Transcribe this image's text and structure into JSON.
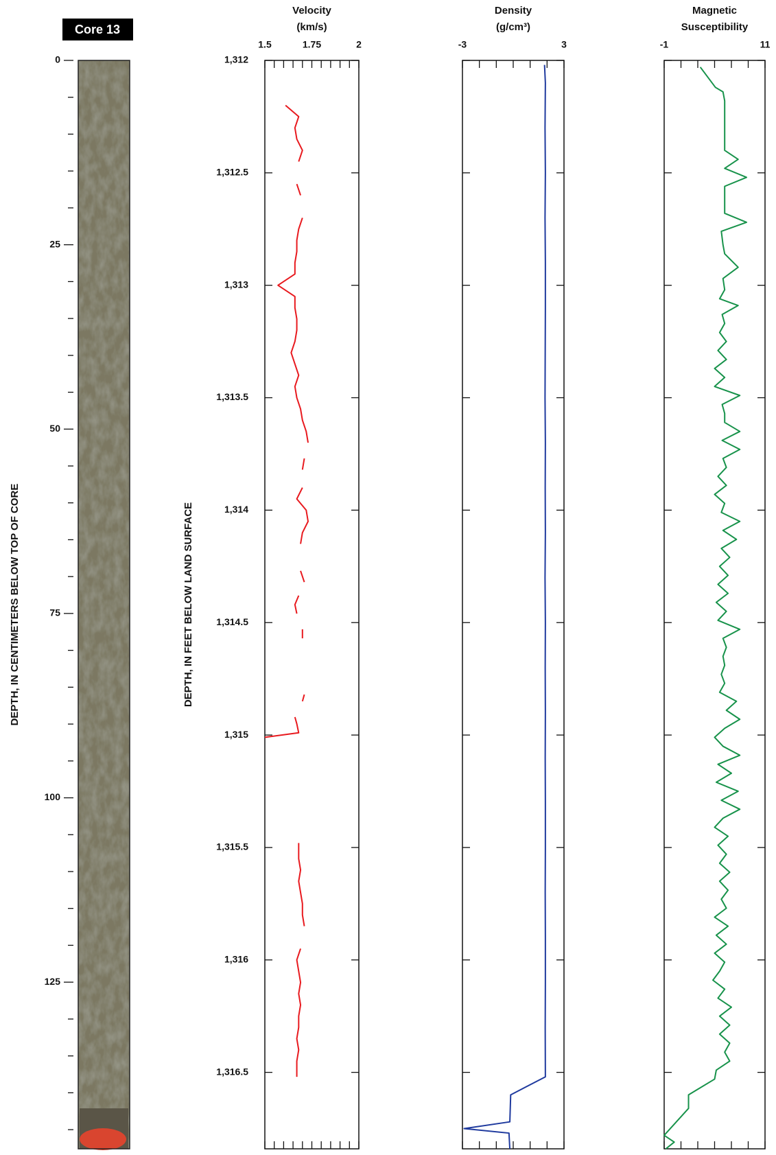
{
  "depth_axis": {
    "ylabel": "DEPTH, IN FEET BELOW LAND SURFACE",
    "yticks": [
      {
        "value": 1312,
        "label": "1,312"
      },
      {
        "value": 1312.5,
        "label": "1,312.5"
      },
      {
        "value": 1313,
        "label": "1,313"
      },
      {
        "value": 1313.5,
        "label": "1,313.5"
      },
      {
        "value": 1314,
        "label": "1,314"
      },
      {
        "value": 1314.5,
        "label": "1,314.5"
      },
      {
        "value": 1315,
        "label": "1,315"
      },
      {
        "value": 1315.5,
        "label": "1,315.5"
      },
      {
        "value": 1316,
        "label": "1,316"
      },
      {
        "value": 1316.5,
        "label": "1,316.5"
      }
    ]
  },
  "chart_data": [
    {
      "type": "core",
      "title": "Core 13",
      "ylabel": "DEPTH, IN CENTIMETERS BELOW TOP OF CORE",
      "ylim": [
        0,
        147.6
      ],
      "yticks": [
        0,
        25,
        50,
        75,
        100,
        125
      ],
      "yminorticks": [
        5,
        10,
        15,
        20,
        30,
        35,
        40,
        45,
        55,
        60,
        65,
        70,
        80,
        85,
        90,
        95,
        105,
        110,
        115,
        120,
        130,
        135,
        140,
        145
      ]
    },
    {
      "type": "line",
      "xlabel": [
        "Velocity",
        "(km/s)"
      ],
      "color": "#e8191e",
      "ytick_labels": true,
      "xlim": [
        1.5,
        2
      ],
      "xticks": [
        1.5,
        1.75,
        2
      ],
      "xminorticks": [
        1.55,
        1.6,
        1.65,
        1.7,
        1.8,
        1.85,
        1.9,
        1.95
      ],
      "ylim": [
        1312,
        1316.84
      ],
      "depth": [
        1312.2,
        1312.25,
        1312.3,
        1312.35,
        1312.4,
        1312.45,
        1312.5,
        1312.55,
        1312.6,
        1312.65,
        1312.7,
        1312.75,
        1312.8,
        1312.85,
        1312.9,
        1312.95,
        1313,
        1313.05,
        1313.1,
        1313.15,
        1313.2,
        1313.25,
        1313.3,
        1313.35,
        1313.4,
        1313.45,
        1313.5,
        1313.55,
        1313.6,
        1313.65,
        1313.7,
        1313.74,
        1313.77,
        1313.82,
        1313.86,
        1313.9,
        1313.95,
        1314,
        1314.05,
        1314.1,
        1314.15,
        1314.2,
        1314.27,
        1314.32,
        1314.36,
        1314.38,
        1314.42,
        1314.46,
        1314.48,
        1314.53,
        1314.57,
        1314.7,
        1314.82,
        1314.85,
        1314.87,
        1314.92,
        1314.95,
        1314.99,
        1315.01,
        1315.1,
        1315.48,
        1315.55,
        1315.6,
        1315.65,
        1315.7,
        1315.75,
        1315.8,
        1315.85,
        1315.9,
        1315.95,
        1316,
        1316.05,
        1316.1,
        1316.15,
        1316.2,
        1316.25,
        1316.3,
        1316.35,
        1316.4,
        1316.45,
        1316.5,
        1316.52
      ],
      "values": [
        1.61,
        1.68,
        1.66,
        1.67,
        1.7,
        1.68,
        null,
        1.67,
        1.69,
        null,
        1.7,
        1.68,
        1.67,
        1.67,
        1.66,
        1.66,
        1.57,
        1.66,
        1.66,
        1.67,
        1.67,
        1.66,
        1.64,
        1.66,
        1.68,
        1.66,
        1.67,
        1.69,
        1.7,
        1.72,
        1.73,
        null,
        1.71,
        1.7,
        null,
        1.7,
        1.67,
        1.72,
        1.73,
        1.7,
        1.69,
        null,
        1.69,
        1.71,
        null,
        1.68,
        1.66,
        1.67,
        null,
        1.7,
        1.7,
        null,
        1.71,
        1.7,
        null,
        1.66,
        1.67,
        1.68,
        1.5,
        null,
        1.68,
        1.68,
        1.69,
        1.68,
        1.69,
        1.7,
        1.7,
        1.71,
        null,
        1.69,
        1.67,
        1.68,
        1.69,
        1.68,
        1.69,
        1.68,
        1.68,
        1.67,
        1.68,
        1.67,
        1.67,
        1.67
      ]
    },
    {
      "type": "line",
      "xlabel": [
        "Density",
        "(g/cm³)"
      ],
      "color": "#1f3a9e",
      "ytick_labels": false,
      "xlim": [
        -3,
        3
      ],
      "xticks": [
        -3,
        3
      ],
      "xminorticks": [
        -2,
        -1,
        0,
        1,
        2
      ],
      "ylim": [
        1312,
        1316.84
      ],
      "depth": [
        1312.02,
        1312.1,
        1312.3,
        1312.5,
        1312.7,
        1312.9,
        1313.1,
        1313.3,
        1313.5,
        1313.7,
        1313.9,
        1314.1,
        1314.3,
        1314.5,
        1314.7,
        1314.9,
        1315.1,
        1315.3,
        1315.5,
        1315.7,
        1315.9,
        1316.1,
        1316.3,
        1316.52,
        1316.6,
        1316.72,
        1316.75,
        1316.77,
        1316.84
      ],
      "values": [
        1.85,
        1.9,
        1.88,
        1.9,
        1.88,
        1.9,
        1.9,
        1.89,
        1.88,
        1.9,
        1.89,
        1.9,
        1.88,
        1.9,
        1.89,
        1.9,
        1.89,
        1.9,
        1.9,
        1.89,
        1.9,
        1.9,
        1.89,
        1.9,
        -0.15,
        -0.2,
        -2.9,
        -0.25,
        -0.2
      ]
    },
    {
      "type": "line",
      "xlabel": [
        "Magnetic",
        "Susceptibility"
      ],
      "color": "#17924a",
      "ytick_labels": false,
      "xlim": [
        -1,
        11
      ],
      "xticks": [
        -1,
        11
      ],
      "xminorticks": [
        1,
        3,
        5,
        7,
        9
      ],
      "ylim": [
        1312,
        1316.84
      ],
      "depth": [
        1312.03,
        1312.12,
        1312.14,
        1312.18,
        1312.4,
        1312.44,
        1312.48,
        1312.52,
        1312.56,
        1312.68,
        1312.72,
        1312.76,
        1312.82,
        1312.86,
        1312.92,
        1312.97,
        1313.02,
        1313.06,
        1313.09,
        1313.13,
        1313.17,
        1313.21,
        1313.25,
        1313.29,
        1313.33,
        1313.37,
        1313.41,
        1313.45,
        1313.49,
        1313.53,
        1313.57,
        1313.61,
        1313.65,
        1313.69,
        1313.73,
        1313.77,
        1313.81,
        1313.85,
        1313.89,
        1313.93,
        1313.97,
        1314.01,
        1314.05,
        1314.09,
        1314.13,
        1314.17,
        1314.21,
        1314.25,
        1314.29,
        1314.33,
        1314.37,
        1314.41,
        1314.45,
        1314.49,
        1314.53,
        1314.57,
        1314.61,
        1314.65,
        1314.69,
        1314.73,
        1314.77,
        1314.81,
        1314.85,
        1314.89,
        1314.93,
        1314.97,
        1315.01,
        1315.05,
        1315.09,
        1315.13,
        1315.17,
        1315.21,
        1315.25,
        1315.29,
        1315.33,
        1315.37,
        1315.41,
        1315.45,
        1315.49,
        1315.53,
        1315.57,
        1315.61,
        1315.65,
        1315.69,
        1315.73,
        1315.77,
        1315.81,
        1315.85,
        1315.89,
        1315.93,
        1315.97,
        1316.01,
        1316.05,
        1316.09,
        1316.13,
        1316.17,
        1316.21,
        1316.25,
        1316.29,
        1316.33,
        1316.37,
        1316.41,
        1316.45,
        1316.49,
        1316.53,
        1316.6,
        1316.66,
        1316.78,
        1316.81,
        1316.84
      ],
      "values": [
        3.3,
        5.1,
        6.0,
        6.2,
        6.2,
        7.8,
        6.2,
        8.8,
        6.2,
        6.2,
        8.8,
        5.8,
        6.0,
        6.2,
        7.8,
        6.0,
        6.2,
        5.6,
        7.8,
        5.9,
        6.2,
        5.6,
        6.4,
        5.4,
        6.4,
        5.0,
        6.2,
        5.0,
        8.0,
        5.9,
        6.2,
        6.2,
        8.0,
        5.9,
        8.0,
        6.0,
        6.4,
        5.4,
        6.4,
        5.0,
        6.2,
        5.8,
        8.0,
        6.0,
        7.6,
        5.8,
        6.8,
        5.6,
        6.6,
        5.4,
        6.6,
        5.2,
        6.4,
        5.4,
        8.0,
        6.0,
        6.4,
        6.0,
        6.2,
        5.8,
        6.2,
        5.6,
        7.6,
        6.4,
        8.0,
        6.2,
        5.0,
        6.0,
        8.0,
        5.4,
        7.0,
        5.2,
        7.8,
        5.8,
        8.0,
        6.0,
        5.0,
        6.6,
        5.4,
        6.4,
        5.6,
        6.8,
        5.6,
        6.6,
        5.8,
        6.4,
        5.0,
        6.6,
        5.2,
        6.4,
        5.0,
        6.2,
        5.6,
        4.8,
        6.2,
        5.4,
        7.0,
        5.6,
        6.8,
        5.6,
        6.8,
        6.2,
        6.8,
        5.2,
        5.0,
        1.9,
        1.9,
        -1.0,
        0.2,
        -0.8
      ]
    }
  ]
}
